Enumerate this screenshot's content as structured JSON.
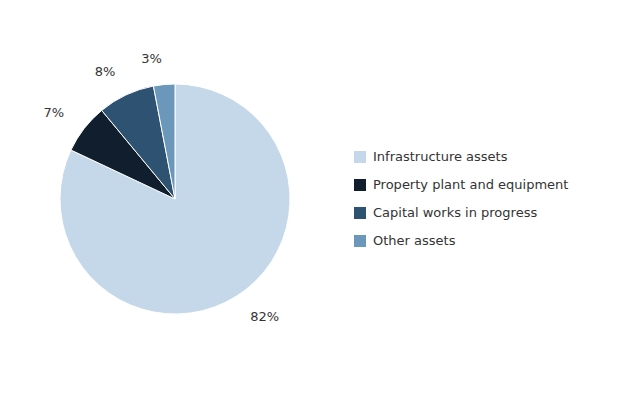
{
  "chart_data": {
    "type": "pie",
    "categories": [
      "Infrastructure assets",
      "Property plant and equipment",
      "Capital works in progress",
      "Other assets"
    ],
    "values": [
      82,
      7,
      8,
      3
    ],
    "value_labels": [
      "82%",
      "7%",
      "8%",
      "3%"
    ],
    "colors": [
      "#c5d8ea",
      "#111e2e",
      "#2e5272",
      "#6b97bb"
    ],
    "data_labels": true,
    "legend": "right"
  }
}
